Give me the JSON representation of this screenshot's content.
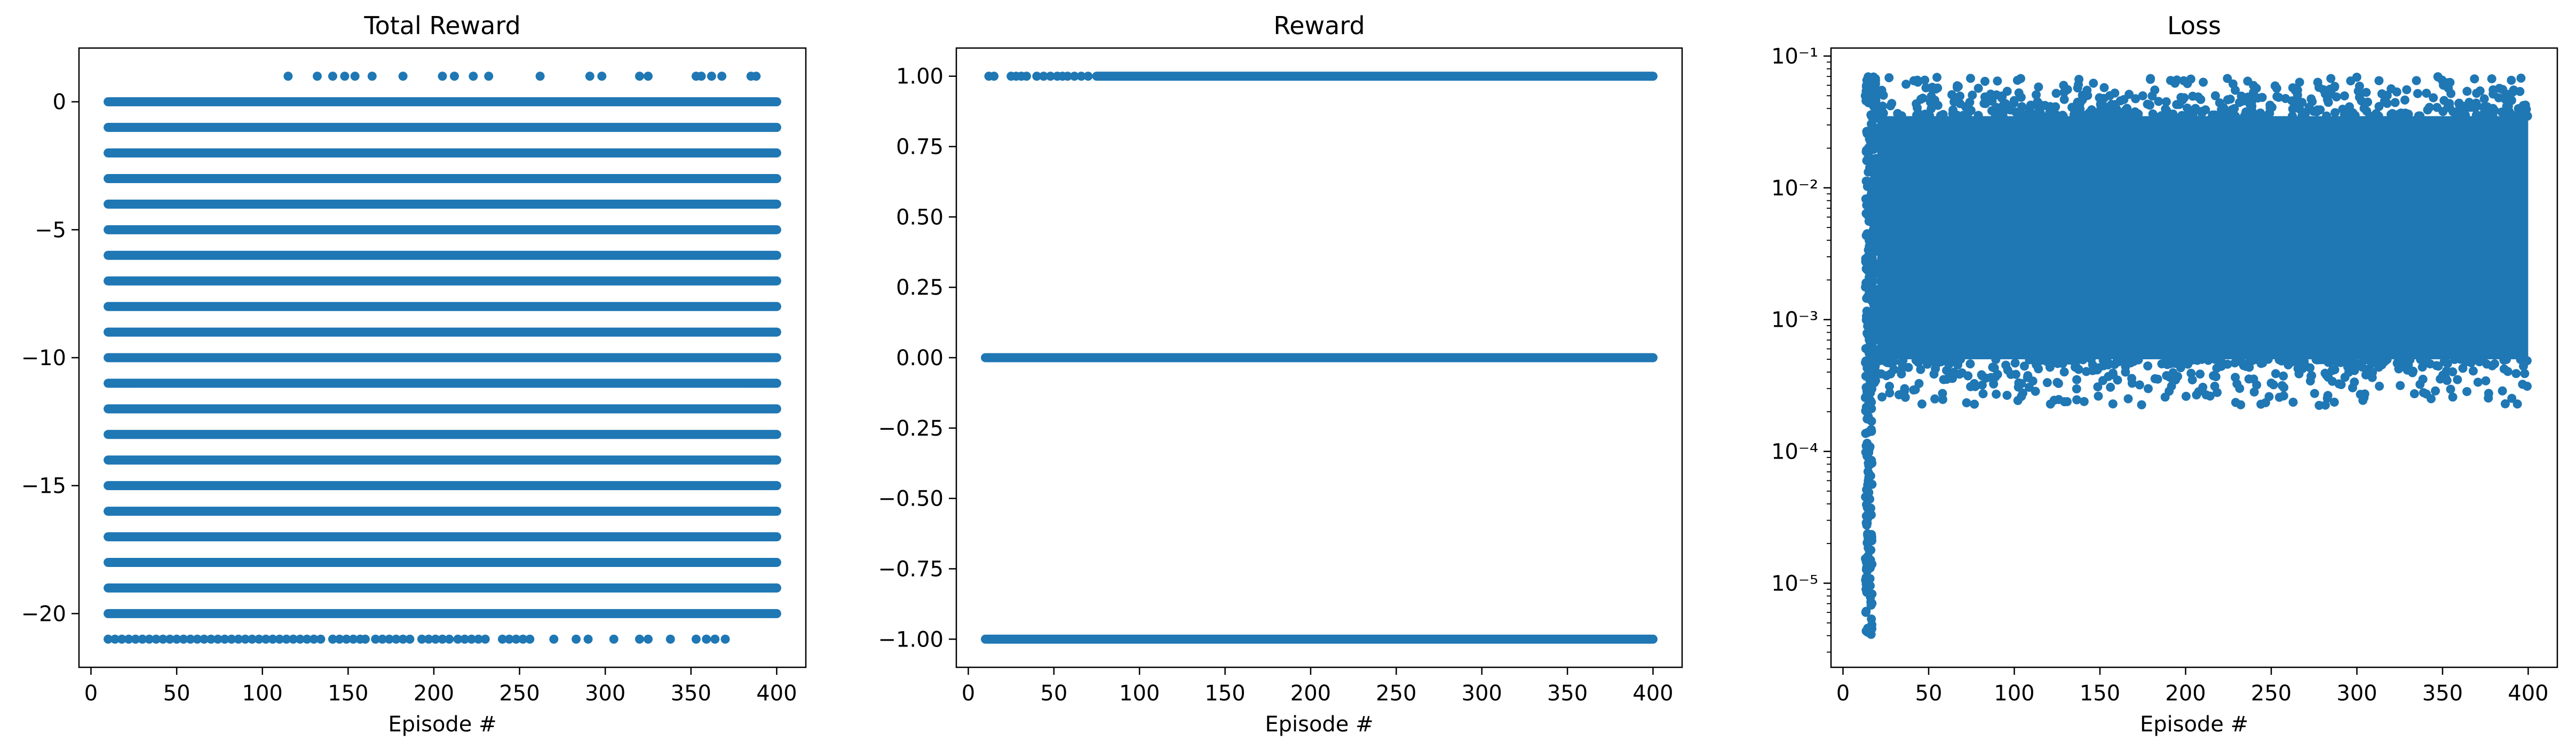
{
  "chart_data": [
    {
      "type": "scatter",
      "title": "Total Reward",
      "xlabel": "Episode #",
      "ylabel": "",
      "xlim": [
        -7,
        417
      ],
      "ylim": [
        -22.1,
        2.1
      ],
      "xticks": [
        "0",
        "50",
        "100",
        "150",
        "200",
        "250",
        "300",
        "350",
        "400"
      ],
      "yticks": [
        "0",
        "−5",
        "−10",
        "−15",
        "−20"
      ],
      "color": "#1f77b4",
      "x_range": [
        10,
        400
      ],
      "bands": [
        {
          "y": 0,
          "x_range": [
            10,
            400
          ]
        },
        {
          "y": -1,
          "x_range": [
            10,
            400
          ]
        },
        {
          "y": -2,
          "x_range": [
            10,
            400
          ]
        },
        {
          "y": -3,
          "x_range": [
            10,
            400
          ]
        },
        {
          "y": -4,
          "x_range": [
            10,
            400
          ]
        },
        {
          "y": -5,
          "x_range": [
            10,
            400
          ]
        },
        {
          "y": -6,
          "x_range": [
            10,
            400
          ]
        },
        {
          "y": -7,
          "x_range": [
            10,
            400
          ]
        },
        {
          "y": -8,
          "x_range": [
            10,
            400
          ]
        },
        {
          "y": -9,
          "x_range": [
            10,
            400
          ]
        },
        {
          "y": -10,
          "x_range": [
            10,
            400
          ]
        },
        {
          "y": -11,
          "x_range": [
            10,
            400
          ]
        },
        {
          "y": -12,
          "x_range": [
            10,
            400
          ]
        },
        {
          "y": -13,
          "x_range": [
            10,
            400
          ]
        },
        {
          "y": -14,
          "x_range": [
            10,
            400
          ]
        },
        {
          "y": -15,
          "x_range": [
            10,
            400
          ]
        },
        {
          "y": -16,
          "x_range": [
            10,
            400
          ]
        },
        {
          "y": -17,
          "x_range": [
            10,
            400
          ]
        },
        {
          "y": -18,
          "x_range": [
            10,
            400
          ]
        },
        {
          "y": -19,
          "x_range": [
            10,
            400
          ]
        },
        {
          "y": -20,
          "x_range": [
            10,
            400
          ]
        }
      ],
      "sparse_points": [
        {
          "y": 1,
          "x": [
            115,
            132,
            141,
            148,
            154,
            164,
            182,
            205,
            212,
            223,
            232,
            262,
            291,
            298,
            320,
            325,
            353,
            356,
            362,
            368,
            385,
            388
          ]
        },
        {
          "y": -21,
          "x": [
            10,
            14,
            18,
            22,
            26,
            30,
            34,
            38,
            42,
            46,
            50,
            54,
            58,
            62,
            66,
            70,
            74,
            78,
            82,
            86,
            90,
            94,
            98,
            102,
            106,
            110,
            114,
            118,
            122,
            126,
            130,
            134,
            141,
            145,
            149,
            153,
            157,
            160,
            166,
            170,
            174,
            178,
            182,
            186,
            193,
            197,
            201,
            205,
            209,
            214,
            218,
            222,
            226,
            230,
            240,
            244,
            248,
            252,
            256,
            270,
            283,
            290,
            305,
            320,
            325,
            338,
            353,
            359,
            364,
            370
          ]
        }
      ]
    },
    {
      "type": "scatter",
      "title": "Reward",
      "xlabel": "Episode #",
      "ylabel": "",
      "xlim": [
        -7,
        417
      ],
      "ylim": [
        -1.1,
        1.1
      ],
      "xticks": [
        "0",
        "50",
        "100",
        "150",
        "200",
        "250",
        "300",
        "350",
        "400"
      ],
      "yticks": [
        "1.00",
        "0.75",
        "0.50",
        "0.25",
        "0.00",
        "−0.25",
        "−0.50",
        "−0.75",
        "−1.00"
      ],
      "color": "#1f77b4",
      "x_range": [
        10,
        400
      ],
      "bands": [
        {
          "y": 1,
          "x_range": [
            75,
            400
          ]
        },
        {
          "y": 0,
          "x_range": [
            10,
            400
          ]
        },
        {
          "y": -1,
          "x_range": [
            10,
            400
          ]
        }
      ],
      "sparse_points": [
        {
          "y": 1,
          "x": [
            12,
            15,
            25,
            28,
            31,
            34,
            40,
            44,
            48,
            52,
            55,
            58,
            62,
            66,
            70
          ]
        }
      ]
    },
    {
      "type": "scatter",
      "title": "Loss",
      "xlabel": "Episode #",
      "ylabel": "",
      "yscale": "log",
      "xlim": [
        -7,
        417
      ],
      "ylim": [
        2.3e-06,
        0.115
      ],
      "xticks": [
        "0",
        "50",
        "100",
        "150",
        "200",
        "250",
        "300",
        "350",
        "400"
      ],
      "yticks": [
        "10⁻¹",
        "10⁻²",
        "10⁻³",
        "10⁻⁴",
        "10⁻⁵"
      ],
      "color": "#1f77b4",
      "x_range": [
        13,
        400
      ],
      "dense_region": {
        "x_range": [
          20,
          400
        ],
        "y_range": [
          0.0005,
          0.035
        ]
      },
      "spike": {
        "x": [
          13,
          20
        ],
        "y_min": 4e-06,
        "y_max": 0.07
      }
    }
  ]
}
